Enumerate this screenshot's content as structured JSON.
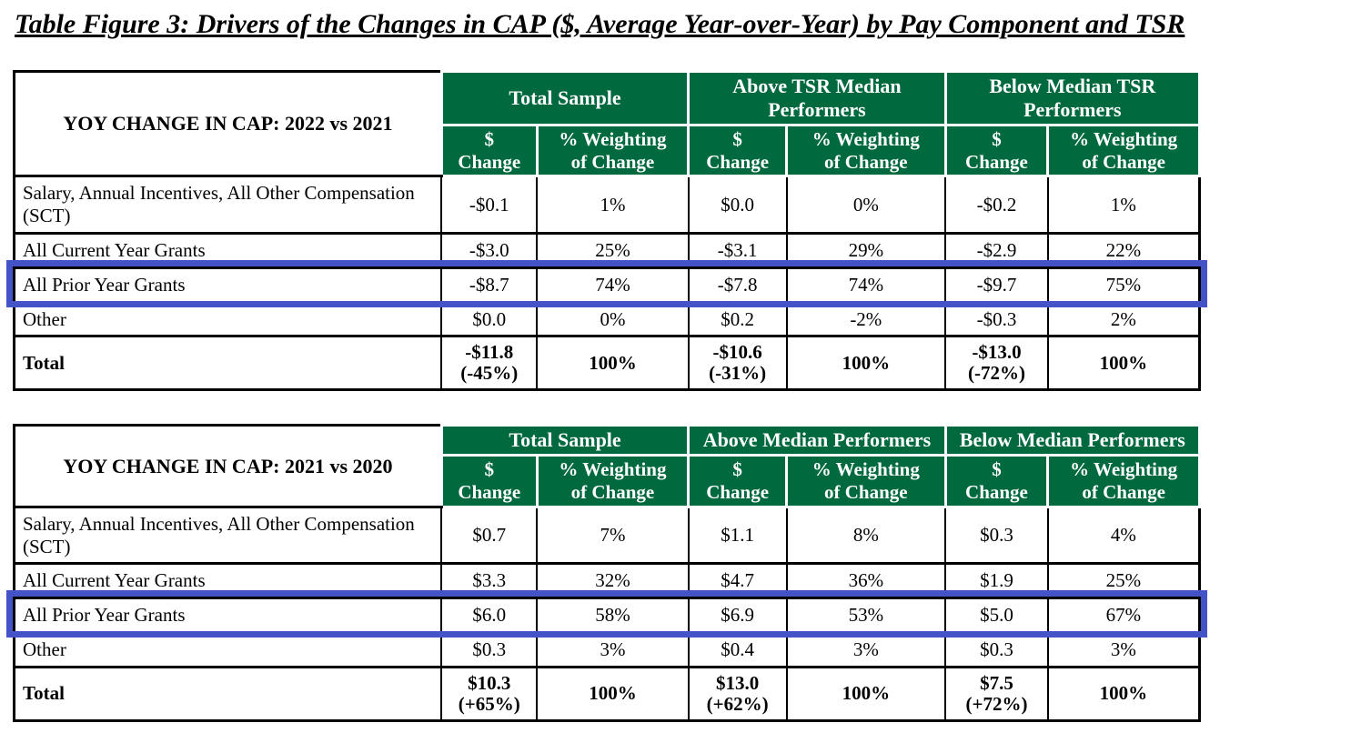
{
  "title": "Table Figure 3: Drivers of the Changes in CAP ($, Average Year-over-Year) by Pay Component and TSR",
  "colors": {
    "header_green": "#00693E",
    "highlight_blue": "#4453C8",
    "border_black": "#000000",
    "header_text": "#FFFFFF"
  },
  "tables": [
    {
      "name": "yoy-2022-vs-2021",
      "corner_label": "YOY CHANGE IN CAP: 2022 vs 2021",
      "groups": [
        "Total Sample",
        "Above TSR Median Performers",
        "Below Median TSR Performers"
      ],
      "subheaders": [
        [
          "$",
          "Change"
        ],
        [
          "% Weighting",
          "of Change"
        ]
      ],
      "rows": [
        {
          "label": "Salary, Annual Incentives, All Other Compensation (SCT)",
          "values": [
            "-$0.1",
            "1%",
            "$0.0",
            "0%",
            "-$0.2",
            "1%"
          ],
          "highlight": false,
          "total": false
        },
        {
          "label": "All Current Year Grants",
          "values": [
            "-$3.0",
            "25%",
            "-$3.1",
            "29%",
            "-$2.9",
            "22%"
          ],
          "highlight": false,
          "total": false
        },
        {
          "label": "All Prior Year Grants",
          "values": [
            "-$8.7",
            "74%",
            "-$7.8",
            "74%",
            "-$9.7",
            "75%"
          ],
          "highlight": true,
          "total": false
        },
        {
          "label": "Other",
          "values": [
            "$0.0",
            "0%",
            "$0.2",
            "-2%",
            "-$0.3",
            "2%"
          ],
          "highlight": false,
          "total": false
        },
        {
          "label": "Total",
          "values": [
            [
              "-$11.8",
              "(-45%)"
            ],
            "100%",
            [
              "-$10.6",
              "(-31%)"
            ],
            "100%",
            [
              "-$13.0",
              "(-72%)"
            ],
            "100%"
          ],
          "highlight": false,
          "total": true
        }
      ]
    },
    {
      "name": "yoy-2021-vs-2020",
      "corner_label": "YOY CHANGE IN CAP: 2021 vs 2020",
      "groups": [
        "Total Sample",
        "Above Median Performers",
        "Below Median Performers"
      ],
      "subheaders": [
        [
          "$",
          "Change"
        ],
        [
          "% Weighting",
          "of Change"
        ]
      ],
      "rows": [
        {
          "label": "Salary, Annual Incentives, All Other Compensation (SCT)",
          "values": [
            "$0.7",
            "7%",
            "$1.1",
            "8%",
            "$0.3",
            "4%"
          ],
          "highlight": false,
          "total": false
        },
        {
          "label": "All Current Year Grants",
          "values": [
            "$3.3",
            "32%",
            "$4.7",
            "36%",
            "$1.9",
            "25%"
          ],
          "highlight": false,
          "total": false
        },
        {
          "label": "All Prior Year Grants",
          "values": [
            "$6.0",
            "58%",
            "$6.9",
            "53%",
            "$5.0",
            "67%"
          ],
          "highlight": true,
          "total": false
        },
        {
          "label": "Other",
          "values": [
            "$0.3",
            "3%",
            "$0.4",
            "3%",
            "$0.3",
            "3%"
          ],
          "highlight": false,
          "total": false
        },
        {
          "label": "Total",
          "values": [
            [
              "$10.3",
              "(+65%)"
            ],
            "100%",
            [
              "$13.0",
              "(+62%)"
            ],
            "100%",
            [
              "$7.5",
              "(+72%)"
            ],
            "100%"
          ],
          "highlight": false,
          "total": true
        }
      ]
    }
  ]
}
